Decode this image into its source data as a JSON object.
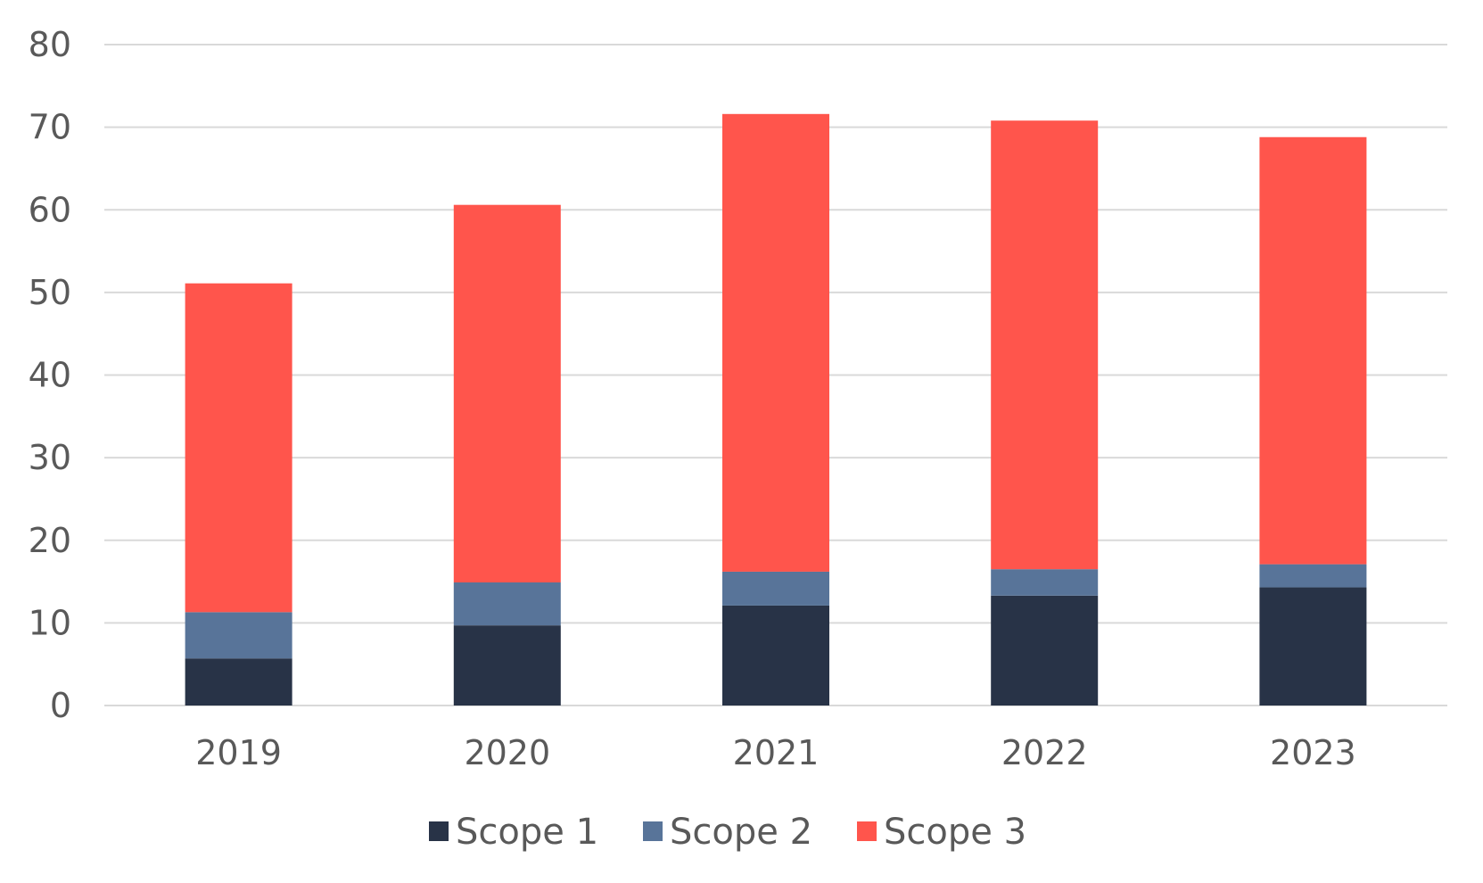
{
  "chart_data": {
    "type": "bar",
    "stacked": true,
    "categories": [
      "2019",
      "2020",
      "2021",
      "2022",
      "2023"
    ],
    "series": [
      {
        "name": "Scope 1",
        "color": "#283347",
        "values": [
          5.7,
          9.7,
          12.1,
          13.3,
          14.3
        ]
      },
      {
        "name": "Scope 2",
        "color": "#587499",
        "values": [
          5.6,
          5.2,
          4.1,
          3.2,
          2.8
        ]
      },
      {
        "name": "Scope 3",
        "color": "#ff554c",
        "values": [
          39.8,
          45.7,
          55.4,
          54.3,
          51.7
        ]
      }
    ],
    "ylim": [
      0,
      80
    ],
    "yticks": [
      0,
      10,
      20,
      30,
      40,
      50,
      60,
      70,
      80
    ],
    "grid": true,
    "gridColor": "#d9d9d9",
    "legend_position": "bottom",
    "title": "",
    "xlabel": "",
    "ylabel": ""
  }
}
